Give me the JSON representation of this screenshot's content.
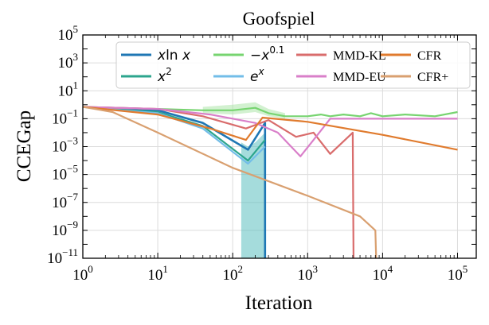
{
  "chart_data": {
    "type": "line",
    "title": "Goofspiel",
    "xlabel": "Iteration",
    "ylabel": "CCEGap",
    "xscale": "log",
    "yscale": "log",
    "xlim_exp": [
      0,
      5.25
    ],
    "ylim_exp": [
      -11,
      5
    ],
    "x_ticks": [
      {
        "base": "10",
        "exp": "0",
        "e": 0
      },
      {
        "base": "10",
        "exp": "1",
        "e": 1
      },
      {
        "base": "10",
        "exp": "2",
        "e": 2
      },
      {
        "base": "10",
        "exp": "3",
        "e": 3
      },
      {
        "base": "10",
        "exp": "4",
        "e": 4
      },
      {
        "base": "10",
        "exp": "5",
        "e": 5
      }
    ],
    "y_ticks": [
      {
        "base": "10",
        "exp": "5",
        "e": 5
      },
      {
        "base": "10",
        "exp": "3",
        "e": 3
      },
      {
        "base": "10",
        "exp": "1",
        "e": 1
      },
      {
        "base": "10",
        "exp": "−1",
        "e": -1
      },
      {
        "base": "10",
        "exp": "−3",
        "e": -3
      },
      {
        "base": "10",
        "exp": "−5",
        "e": -5
      },
      {
        "base": "10",
        "exp": "−7",
        "e": -7
      },
      {
        "base": "10",
        "exp": "−9",
        "e": -9
      },
      {
        "base": "10",
        "exp": "−11",
        "e": -11
      }
    ],
    "grid": true,
    "legend_position": "top",
    "series": [
      {
        "name": "xlnx",
        "legend": [
          {
            "t": "x",
            "i": true
          },
          {
            "t": "ln"
          },
          {
            "t": " x",
            "i": true
          }
        ],
        "color": "#1f77b4",
        "width": 2.6,
        "points": [
          [
            1,
            0.7
          ],
          [
            2,
            0.5
          ],
          [
            10,
            0.4
          ],
          [
            40,
            0.05
          ],
          [
            160,
            0.0006
          ],
          [
            270,
            0.05
          ],
          [
            270,
            1e-11
          ]
        ]
      },
      {
        "name": "x^2",
        "legend": [
          {
            "t": "x",
            "i": true
          },
          {
            "t": "2",
            "sup": true
          }
        ],
        "color": "#2ca58d",
        "width": 2.2,
        "points": [
          [
            1,
            0.7
          ],
          [
            2,
            0.5
          ],
          [
            10,
            0.3
          ],
          [
            40,
            0.03
          ],
          [
            160,
            0.0001
          ],
          [
            270,
            0.003
          ]
        ]
      },
      {
        "name": "-x^0.1",
        "legend": [
          {
            "t": "−"
          },
          {
            "t": "x",
            "i": true
          },
          {
            "t": "0.1",
            "sup": true
          }
        ],
        "color": "#77d470",
        "width": 2.2,
        "band": {
          "color": "#a6e3a1",
          "upper": [
            [
              40,
              0.7
            ],
            [
              100,
              1.0
            ],
            [
              200,
              1.5
            ],
            [
              300,
              0.5
            ],
            [
              500,
              0.25
            ]
          ],
          "lower": [
            [
              40,
              0.25
            ],
            [
              100,
              0.2
            ],
            [
              200,
              0.3
            ],
            [
              300,
              0.15
            ],
            [
              500,
              0.1
            ]
          ]
        },
        "points": [
          [
            1,
            0.7
          ],
          [
            10,
            0.5
          ],
          [
            40,
            0.4
          ],
          [
            100,
            0.4
          ],
          [
            200,
            0.6
          ],
          [
            300,
            0.25
          ],
          [
            500,
            0.15
          ],
          [
            1000,
            0.15
          ],
          [
            1500,
            0.2
          ],
          [
            2000,
            0.15
          ],
          [
            3000,
            0.2
          ],
          [
            5000,
            0.15
          ],
          [
            7000,
            0.25
          ],
          [
            10000,
            0.15
          ],
          [
            20000,
            0.2
          ],
          [
            50000,
            0.15
          ],
          [
            100000,
            0.3
          ]
        ]
      },
      {
        "name": "e^x",
        "legend": [
          {
            "t": "e",
            "i": true
          },
          {
            "t": "x",
            "i": true,
            "sup": true
          }
        ],
        "color": "#72bde8",
        "width": 2.2,
        "points": [
          [
            1,
            0.7
          ],
          [
            2,
            0.5
          ],
          [
            10,
            0.25
          ],
          [
            40,
            0.02
          ],
          [
            160,
            6e-05
          ],
          [
            270,
            0.001
          ]
        ]
      },
      {
        "name": "MMD-KL",
        "legend": [
          {
            "t": "MMD-KL"
          }
        ],
        "color": "#d96c6c",
        "width": 2.2,
        "points": [
          [
            1,
            0.7
          ],
          [
            10,
            0.5
          ],
          [
            40,
            0.15
          ],
          [
            150,
            0.02
          ],
          [
            300,
            0.08
          ],
          [
            700,
            0.005
          ],
          [
            1200,
            0.01
          ],
          [
            2000,
            0.0003
          ],
          [
            4000,
            0.01
          ],
          [
            4100,
            1e-11
          ]
        ]
      },
      {
        "name": "MMD-EU",
        "legend": [
          {
            "t": "MMD-EU"
          }
        ],
        "color": "#d97fc9",
        "width": 2.2,
        "points": [
          [
            1,
            0.7
          ],
          [
            10,
            0.5
          ],
          [
            50,
            0.2
          ],
          [
            200,
            0.05
          ],
          [
            400,
            0.01
          ],
          [
            800,
            0.0002
          ],
          [
            1200,
            0.003
          ],
          [
            2000,
            0.1
          ],
          [
            100000,
            0.1
          ]
        ]
      },
      {
        "name": "CFR",
        "legend": [
          {
            "t": "CFR"
          }
        ],
        "color": "#e07b2e",
        "width": 2.2,
        "points": [
          [
            1,
            0.7
          ],
          [
            10,
            0.2
          ],
          [
            50,
            0.02
          ],
          [
            150,
            0.003
          ],
          [
            250,
            0.12
          ],
          [
            1000,
            0.06
          ],
          [
            10000,
            0.007
          ],
          [
            100000,
            0.0006
          ]
        ]
      },
      {
        "name": "CFR+",
        "legend": [
          {
            "t": "CFR+"
          }
        ],
        "color": "#d9a070",
        "width": 2.2,
        "points": [
          [
            1,
            0.7
          ],
          [
            2.5,
            0.3
          ],
          [
            10,
            0.01
          ],
          [
            100,
            3e-05
          ],
          [
            1000,
            3e-07
          ],
          [
            5000,
            1e-08
          ],
          [
            8000,
            1e-09
          ],
          [
            8200,
            1e-11
          ]
        ]
      }
    ],
    "shaded_regions": [
      {
        "color": "#5bbfbf",
        "opacity": 0.55,
        "x": [
          130,
          270
        ],
        "upper": [
          [
            130,
            0.002
          ],
          [
            160,
            0.001
          ],
          [
            200,
            0.002
          ],
          [
            270,
            0.01
          ]
        ],
        "lower": 1e-11
      }
    ]
  }
}
